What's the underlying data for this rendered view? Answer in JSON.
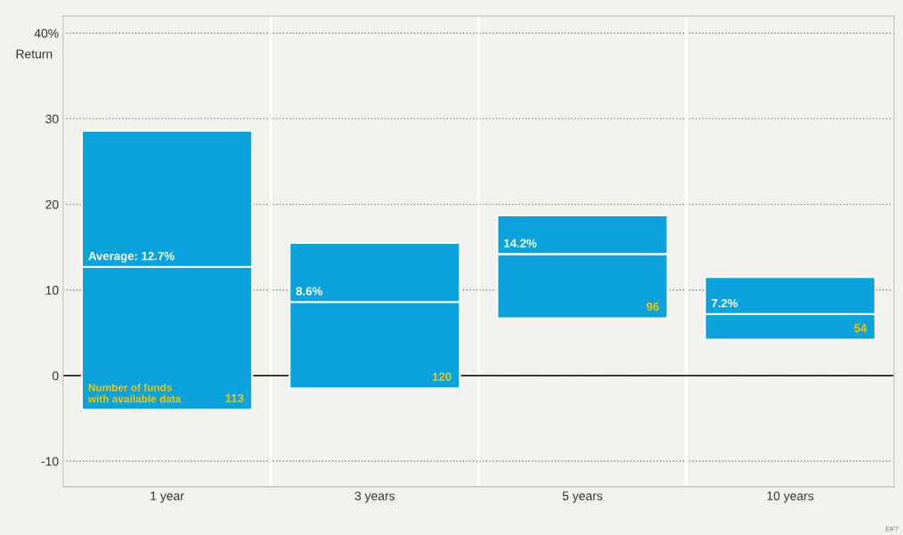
{
  "chart_data": {
    "type": "bar",
    "ylabel": "Return",
    "categories": [
      "1 year",
      "3 years",
      "5 years",
      "10 years"
    ],
    "series": [
      {
        "color": "#0ba3de",
        "values": [
          16.7,
          10.1,
          7.5,
          3.0
        ],
        "base": [
          -4.0,
          -1.5,
          6.7,
          4.2
        ]
      },
      {
        "color": "#0ba3de",
        "values": [
          15.9,
          6.9,
          4.5,
          4.3
        ],
        "base": [
          12.7,
          8.6,
          14.2,
          7.2
        ]
      }
    ],
    "ylim": [
      -13,
      42
    ],
    "yticks": [
      -10,
      0,
      10,
      20,
      30,
      {
        "value": 40,
        "label": "40%"
      }
    ],
    "grid": "y",
    "ref_lines": [
      {
        "axis": "y",
        "value": 0,
        "color": "#222222"
      }
    ],
    "annotations": [
      "Average: 12.7%",
      "8.6%",
      "14.2%",
      "7.2%",
      "Number of funds\nwith available data",
      "113",
      "120",
      "96",
      "54",
      "EIF7"
    ]
  }
}
